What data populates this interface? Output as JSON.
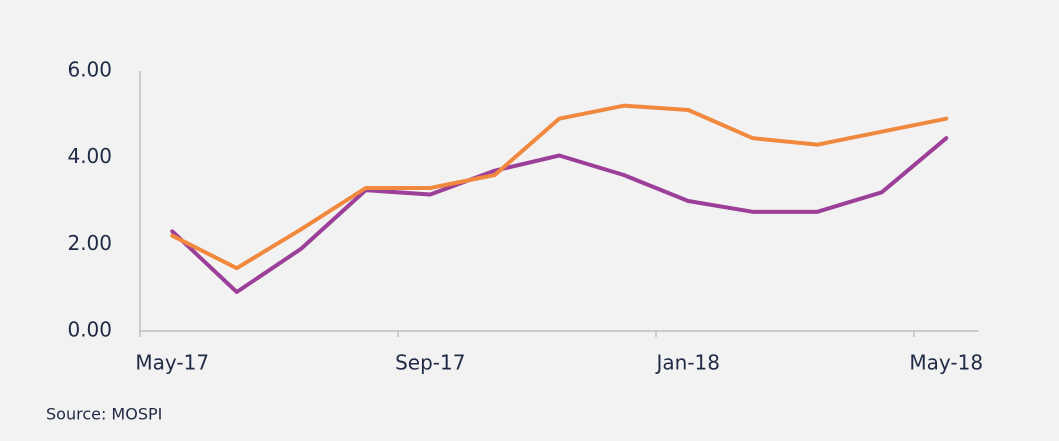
{
  "chart_data": {
    "type": "line",
    "categories": [
      "May-17",
      null,
      null,
      null,
      "Sep-17",
      null,
      null,
      null,
      "Jan-18",
      null,
      null,
      null,
      "May-18"
    ],
    "series": [
      {
        "color": "#9c3f98",
        "values": [
          2.3,
          0.9,
          1.9,
          3.25,
          3.15,
          3.7,
          4.05,
          3.6,
          3.0,
          2.75,
          2.75,
          3.2,
          4.45
        ]
      },
      {
        "color": "#f0883e",
        "values": [
          2.2,
          1.45,
          2.35,
          3.3,
          3.3,
          3.6,
          4.9,
          5.2,
          5.1,
          4.45,
          4.3,
          4.6,
          4.9
        ]
      }
    ],
    "ylim": [
      0,
      6
    ],
    "yticks": [
      {
        "value": 0,
        "label": "0.00"
      },
      {
        "value": 2,
        "label": "2.00"
      },
      {
        "value": 4,
        "label": "4.00"
      },
      {
        "value": 6,
        "label": "6.00"
      }
    ],
    "grid": false,
    "source": "Source:  MOSPI"
  }
}
